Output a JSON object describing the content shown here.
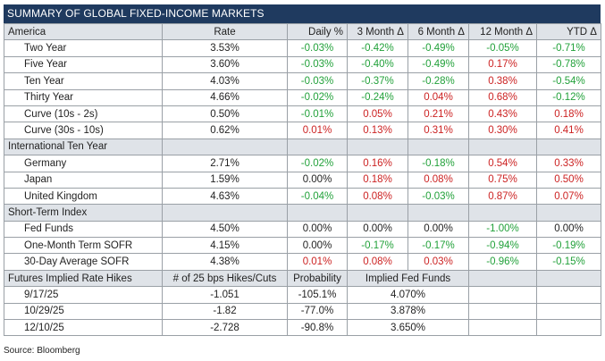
{
  "title": "SUMMARY OF GLOBAL FIXED-INCOME MARKETS",
  "header": [
    "America",
    "Rate",
    "Daily %",
    "3 Month Δ",
    "6 Month Δ",
    "12 Month Δ",
    "YTD Δ"
  ],
  "america": [
    {
      "name": "Two Year",
      "rate": "3.53%",
      "d": "-0.03%",
      "m3": "-0.42%",
      "m6": "-0.49%",
      "m12": "-0.05%",
      "ytd": "-0.71%"
    },
    {
      "name": "Five Year",
      "rate": "3.60%",
      "d": "-0.03%",
      "m3": "-0.40%",
      "m6": "-0.49%",
      "m12": "0.17%",
      "ytd": "-0.78%"
    },
    {
      "name": "Ten Year",
      "rate": "4.03%",
      "d": "-0.03%",
      "m3": "-0.37%",
      "m6": "-0.28%",
      "m12": "0.38%",
      "ytd": "-0.54%"
    },
    {
      "name": "Thirty Year",
      "rate": "4.66%",
      "d": "-0.02%",
      "m3": "-0.24%",
      "m6": "0.04%",
      "m12": "0.68%",
      "ytd": "-0.12%"
    },
    {
      "name": "Curve (10s - 2s)",
      "rate": "0.50%",
      "d": "-0.01%",
      "m3": "0.05%",
      "m6": "0.21%",
      "m12": "0.43%",
      "ytd": "0.18%"
    },
    {
      "name": "Curve (30s - 10s)",
      "rate": "0.62%",
      "d": "0.01%",
      "m3": "0.13%",
      "m6": "0.31%",
      "m12": "0.30%",
      "ytd": "0.41%"
    }
  ],
  "intl_title": "International Ten Year",
  "intl": [
    {
      "name": "Germany",
      "rate": "2.71%",
      "d": "-0.02%",
      "m3": "0.16%",
      "m6": "-0.18%",
      "m12": "0.54%",
      "ytd": "0.33%"
    },
    {
      "name": "Japan",
      "rate": "1.59%",
      "d": "0.00%",
      "m3": "0.18%",
      "m6": "0.08%",
      "m12": "0.75%",
      "ytd": "0.50%"
    },
    {
      "name": "United Kingdom",
      "rate": "4.63%",
      "d": "-0.04%",
      "m3": "0.08%",
      "m6": "-0.03%",
      "m12": "0.87%",
      "ytd": "0.07%"
    }
  ],
  "short_title": "Short-Term Index",
  "short": [
    {
      "name": "Fed Funds",
      "rate": "4.50%",
      "d": "0.00%",
      "m3": "0.00%",
      "m6": "0.00%",
      "m12": "-1.00%",
      "ytd": "0.00%"
    },
    {
      "name": "One-Month Term SOFR",
      "rate": "4.15%",
      "d": "0.00%",
      "m3": "-0.17%",
      "m6": "-0.17%",
      "m12": "-0.94%",
      "ytd": "-0.19%"
    },
    {
      "name": "30-Day Average SOFR",
      "rate": "4.38%",
      "d": "0.01%",
      "m3": "0.08%",
      "m6": "0.03%",
      "m12": "-0.96%",
      "ytd": "-0.15%"
    }
  ],
  "futures_header": [
    "Futures Implied Rate Hikes",
    "# of 25 bps Hikes/Cuts",
    "Probability",
    "Implied Fed Funds"
  ],
  "futures": [
    {
      "date": "9/17/25",
      "hikes": "-1.051",
      "prob": "-105.1%",
      "implied": "4.070%"
    },
    {
      "date": "10/29/25",
      "hikes": "-1.82",
      "prob": "-77.0%",
      "implied": "3.878%"
    },
    {
      "date": "12/10/25",
      "hikes": "-2.728",
      "prob": "-90.8%",
      "implied": "3.650%"
    }
  ],
  "source": "Source: Bloomberg",
  "colors": {
    "title_bg": "#1f3a5f",
    "header_bg": "#dfe3e8",
    "up": "#cc2222",
    "down": "#22a13a"
  }
}
